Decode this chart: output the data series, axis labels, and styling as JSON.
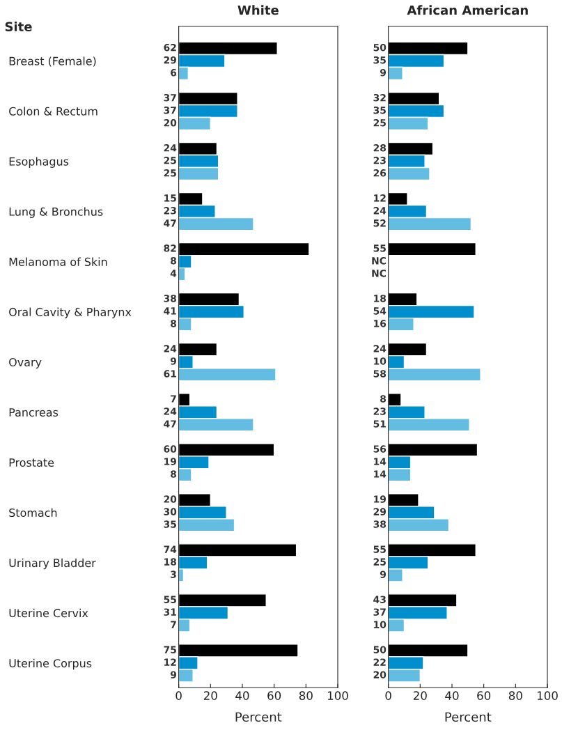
{
  "chart_data": [
    {
      "type": "bar",
      "orientation": "horizontal",
      "title": "White",
      "ylabel": "Site",
      "xlabel": "Percent",
      "xlim": [
        0,
        100
      ],
      "xticks": [
        0,
        20,
        40,
        60,
        80,
        100
      ],
      "grid": false,
      "legend": false,
      "data_labels": true,
      "categories": [
        "Breast (Female)",
        "Colon & Rectum",
        "Esophagus",
        "Lung & Bronchus",
        "Melanoma of Skin",
        "Oral Cavity & Pharynx",
        "Ovary",
        "Pancreas",
        "Prostate",
        "Stomach",
        "Urinary Bladder",
        "Uterine Cervix",
        "Uterine Corpus"
      ],
      "series": [
        {
          "color": "#000000",
          "values": [
            62,
            37,
            24,
            15,
            82,
            38,
            24,
            7,
            60,
            20,
            74,
            55,
            75
          ]
        },
        {
          "color": "#008fcc",
          "values": [
            29,
            37,
            25,
            23,
            8,
            41,
            9,
            24,
            19,
            30,
            18,
            31,
            12
          ]
        },
        {
          "color": "#63bde3",
          "values": [
            6,
            20,
            25,
            47,
            4,
            8,
            61,
            47,
            8,
            35,
            3,
            7,
            9
          ]
        }
      ]
    },
    {
      "type": "bar",
      "orientation": "horizontal",
      "title": "African American",
      "xlabel": "Percent",
      "xlim": [
        0,
        100
      ],
      "xticks": [
        0,
        20,
        40,
        60,
        80,
        100
      ],
      "grid": false,
      "legend": false,
      "tick_labels": "x",
      "categories": [
        null,
        null,
        null,
        null,
        null,
        null,
        null,
        null,
        null,
        null,
        null,
        null,
        null
      ],
      "series": [
        {
          "color": "#000000",
          "values": [
            50,
            32,
            28,
            12,
            55,
            18,
            24,
            8,
            56,
            19,
            55,
            43,
            50
          ],
          "value_labels": [
            "50",
            "32",
            "28",
            "12",
            "55",
            "18",
            "24",
            "8",
            "56",
            "19",
            "55",
            "43",
            "50"
          ]
        },
        {
          "color": "#008fcc",
          "values": [
            35,
            35,
            23,
            24,
            null,
            54,
            10,
            23,
            14,
            29,
            25,
            37,
            22
          ],
          "value_labels": [
            "35",
            "35",
            "23",
            "24",
            "NC",
            "54",
            "10",
            "23",
            "14",
            "29",
            "25",
            "37",
            "22"
          ]
        },
        {
          "color": "#63bde3",
          "values": [
            9,
            25,
            26,
            52,
            null,
            16,
            58,
            51,
            14,
            38,
            9,
            10,
            20
          ],
          "value_labels": [
            "9",
            "25",
            "26",
            "52",
            "NC",
            "16",
            "58",
            "51",
            "14",
            "38",
            "9",
            "10",
            "20"
          ]
        }
      ]
    }
  ]
}
